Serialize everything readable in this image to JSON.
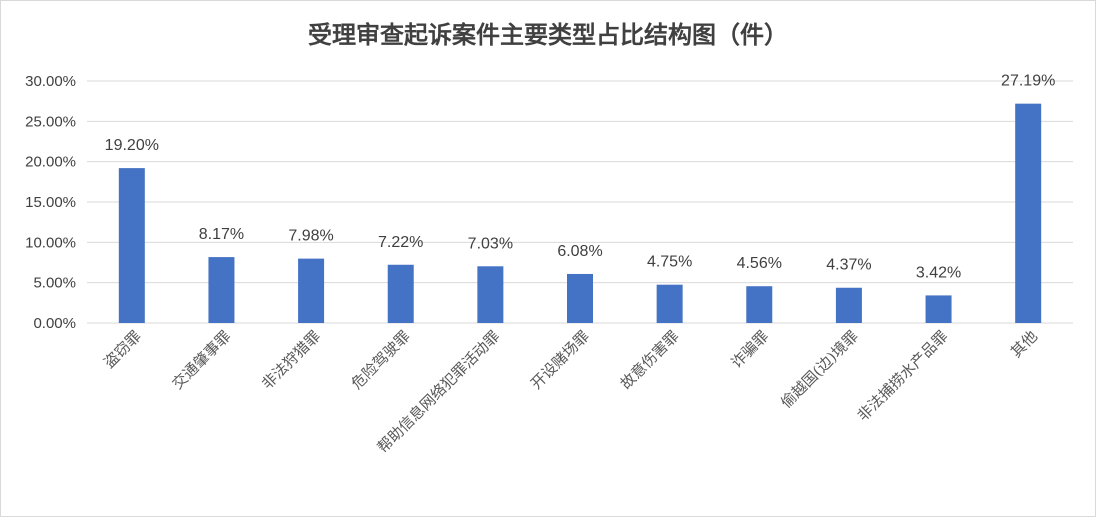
{
  "chart_data": {
    "type": "bar",
    "title": "受理审查起诉案件主要类型占比结构图（件）",
    "xlabel": "",
    "ylabel": "",
    "categories": [
      "盗窃罪",
      "交通肇事罪",
      "非法狩猎罪",
      "危险驾驶罪",
      "帮助信息网络犯罪活动罪",
      "开设赌场罪",
      "故意伤害罪",
      "诈骗罪",
      "偷越国(边)境罪",
      "非法捕捞水产品罪",
      "其他"
    ],
    "values": [
      19.2,
      8.17,
      7.98,
      7.22,
      7.03,
      6.08,
      4.75,
      4.56,
      4.37,
      3.42,
      27.19
    ],
    "data_labels": [
      "19.20%",
      "8.17%",
      "7.98%",
      "7.22%",
      "7.03%",
      "6.08%",
      "4.75%",
      "4.56%",
      "4.37%",
      "3.42%",
      "27.19%"
    ],
    "yticks": [
      0,
      5,
      10,
      15,
      20,
      25,
      30
    ],
    "ytick_labels": [
      "0.00%",
      "5.00%",
      "10.00%",
      "15.00%",
      "20.00%",
      "25.00%",
      "30.00%"
    ],
    "ylim": [
      0,
      30
    ],
    "grid": true,
    "legend": "none",
    "bar_color": "#4472c4"
  }
}
